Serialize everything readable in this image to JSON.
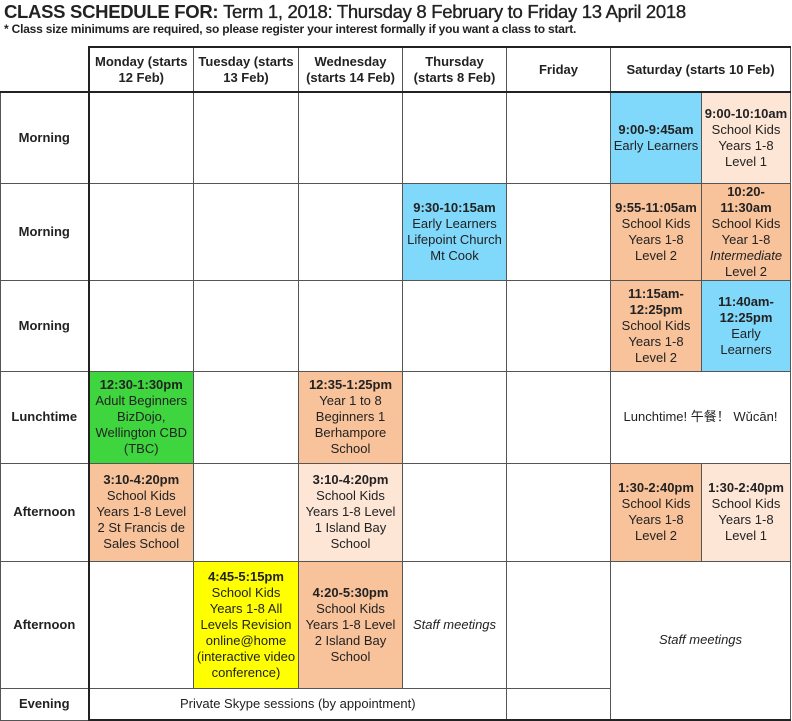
{
  "title": {
    "prefix": "CLASS SCHEDULE FOR:",
    "rest": "Term 1, 2018: Thursday 8 February to Friday 13 April 2018"
  },
  "note": "* Class size minimums are required, so please register your interest formally if you want a class to start.",
  "headers": [
    "Monday (starts 12 Feb)",
    "Tuesday (starts 13 Feb)",
    "Wednesday (starts 14 Feb)",
    "Thursday (starts 8 Feb)",
    "Friday",
    "Saturday (starts 10 Feb)"
  ],
  "rows": [
    "Morning",
    "Morning",
    "Morning",
    "Lunchtime",
    "Afternoon",
    "Afternoon",
    "Evening"
  ],
  "colors": {
    "early_learners": "#80d8fb",
    "level1": "#fde6d6",
    "level2": "#f8c29b",
    "adult": "#3fd53f",
    "online": "#ffff00"
  },
  "cells": {
    "sat_m1_a": {
      "time": "9:00-9:45am",
      "lines": [
        "Early Learners"
      ]
    },
    "sat_m1_b": {
      "time": "9:00-10:10am",
      "lines": [
        "School Kids",
        "Years 1-8",
        "Level 1"
      ]
    },
    "thu_m2": {
      "time": "9:30-10:15am",
      "lines": [
        "Early Learners",
        "Lifepoint Church",
        "Mt Cook"
      ]
    },
    "sat_m2_a": {
      "time": "9:55-11:05am",
      "lines": [
        "School Kids",
        "Years 1-8",
        "Level 2"
      ]
    },
    "sat_m2_b": {
      "time1": "10:20-",
      "time2": "11:30am",
      "lines": [
        "School Kids",
        "Year 1-8"
      ],
      "italic": "Intermediate",
      "after": "Level 2"
    },
    "sat_m3_a": {
      "time1": "11:15am-",
      "time2": "12:25pm",
      "lines": [
        "School Kids",
        "Years 1-8",
        "Level 2"
      ]
    },
    "sat_m3_b": {
      "time1": "11:40am-",
      "time2": "12:25pm",
      "lines": [
        "Early Learners"
      ]
    },
    "mon_lunch": {
      "time": "12:30-1:30pm",
      "lines": [
        "Adult Beginners",
        "BizDojo,",
        "Wellington CBD",
        "(TBC)"
      ]
    },
    "wed_lunch": {
      "time": "12:35-1:25pm",
      "lines": [
        "Year 1 to 8",
        "Beginners 1",
        "Berhampore",
        "School"
      ]
    },
    "sat_lunch": "Lunchtime! 午餐！ Wǔcān!",
    "mon_aft1": {
      "time": "3:10-4:20pm",
      "lines": [
        "School Kids",
        "Years 1-8 Level",
        "2 St Francis de",
        "Sales School"
      ]
    },
    "wed_aft1": {
      "time": "3:10-4:20pm",
      "lines": [
        "School Kids",
        "Years 1-8 Level",
        "1 Island Bay",
        "School"
      ]
    },
    "sat_aft1_a": {
      "time": "1:30-2:40pm",
      "lines": [
        "School Kids",
        "Years 1-8",
        "Level 2"
      ]
    },
    "sat_aft1_b": {
      "time": "1:30-2:40pm",
      "lines": [
        "School Kids",
        "Years 1-8",
        "Level 1"
      ]
    },
    "tue_aft2": {
      "time": "4:45-5:15pm",
      "lines": [
        "School Kids",
        "Years 1-8 All",
        "Levels Revision",
        "online@home",
        "(interactive video",
        "conference)"
      ]
    },
    "wed_aft2": {
      "time": "4:20-5:30pm",
      "lines": [
        "School Kids",
        "Years 1-8 Level",
        "2 Island Bay",
        "School"
      ]
    },
    "thu_aft2": "Staff meetings",
    "sat_staff": "Staff meetings",
    "evening": "Private Skype sessions (by appointment)"
  }
}
